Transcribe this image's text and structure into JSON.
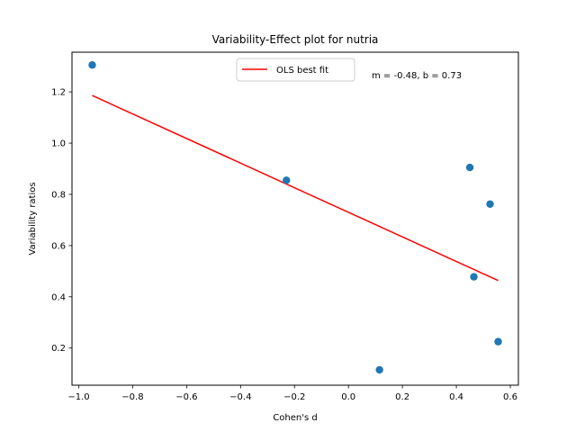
{
  "chart_data": {
    "type": "scatter",
    "title": "Variability-Effect plot for nutria",
    "xlabel": "Cohen's d",
    "ylabel": "Variability ratios",
    "xlim": [
      -1.025,
      0.63
    ],
    "ylim": [
      0.055,
      1.355
    ],
    "xticks": [
      -1.0,
      -0.8,
      -0.6,
      -0.4,
      -0.2,
      0.0,
      0.2,
      0.4,
      0.6
    ],
    "xtick_labels": [
      "−1.0",
      "−0.8",
      "−0.6",
      "−0.4",
      "−0.2",
      "0.0",
      "0.2",
      "0.4",
      "0.6"
    ],
    "yticks": [
      0.2,
      0.4,
      0.6,
      0.8,
      1.0,
      1.2
    ],
    "ytick_labels": [
      "0.2",
      "0.4",
      "0.6",
      "0.8",
      "1.0",
      "1.2"
    ],
    "grid": false,
    "legend_position": "top-center",
    "annotation": "m = -0.48, b = 0.73",
    "series": [
      {
        "kind": "scatter",
        "color": "#1f77b4",
        "points": [
          {
            "x": -0.95,
            "y": 1.305
          },
          {
            "x": -0.23,
            "y": 0.855
          },
          {
            "x": 0.115,
            "y": 0.115
          },
          {
            "x": 0.45,
            "y": 0.905
          },
          {
            "x": 0.465,
            "y": 0.478
          },
          {
            "x": 0.525,
            "y": 0.762
          },
          {
            "x": 0.555,
            "y": 0.225
          }
        ]
      },
      {
        "kind": "line",
        "name": "OLS best fit",
        "color": "#ff0000",
        "m": -0.48,
        "b": 0.73,
        "x_range": [
          -0.95,
          0.555
        ]
      }
    ]
  }
}
